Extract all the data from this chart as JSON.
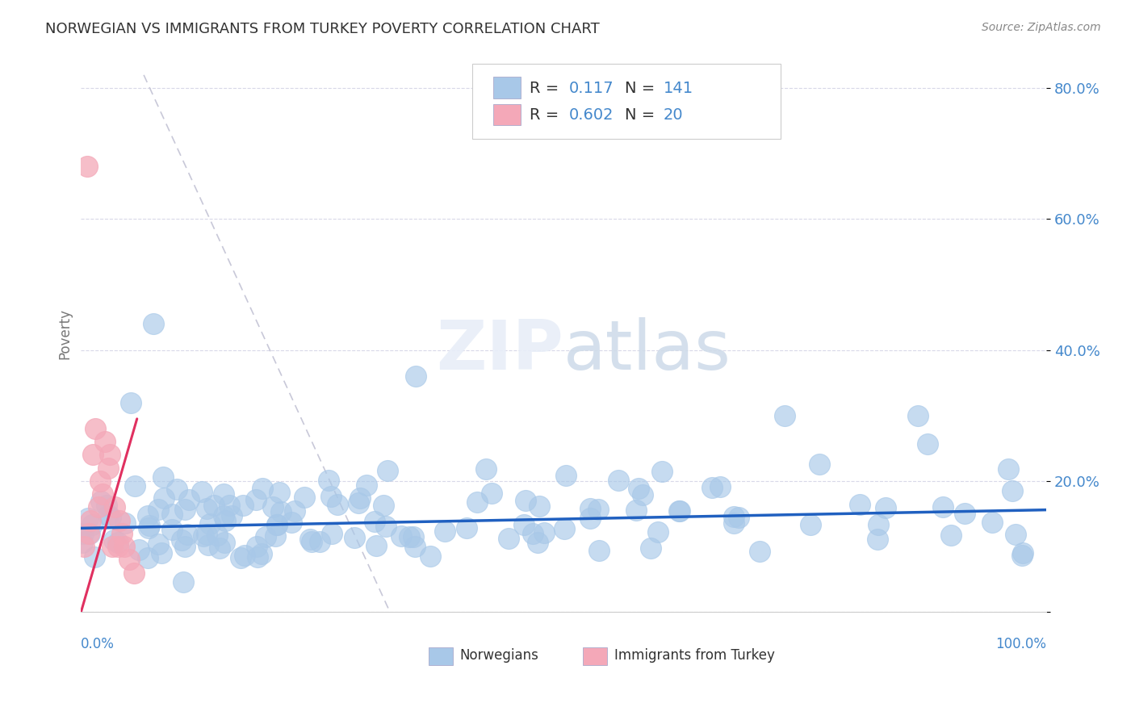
{
  "title": "NORWEGIAN VS IMMIGRANTS FROM TURKEY POVERTY CORRELATION CHART",
  "source": "Source: ZipAtlas.com",
  "ylabel": "Poverty",
  "xlim": [
    0,
    1.0
  ],
  "ylim": [
    0,
    0.85
  ],
  "ytick_vals": [
    0.0,
    0.2,
    0.4,
    0.6,
    0.8
  ],
  "ytick_labels": [
    "",
    "20.0%",
    "40.0%",
    "60.0%",
    "80.0%"
  ],
  "blue_color": "#a8c8e8",
  "pink_color": "#f4a8b8",
  "line_blue": "#2060c0",
  "line_pink": "#e03060",
  "line_dash_color": "#c8c8d8",
  "background_color": "#ffffff",
  "grid_color": "#d8d8e8",
  "tick_color": "#4488cc",
  "watermark": "ZIPatlas",
  "nor_seed": 77,
  "tur_seed": 42
}
